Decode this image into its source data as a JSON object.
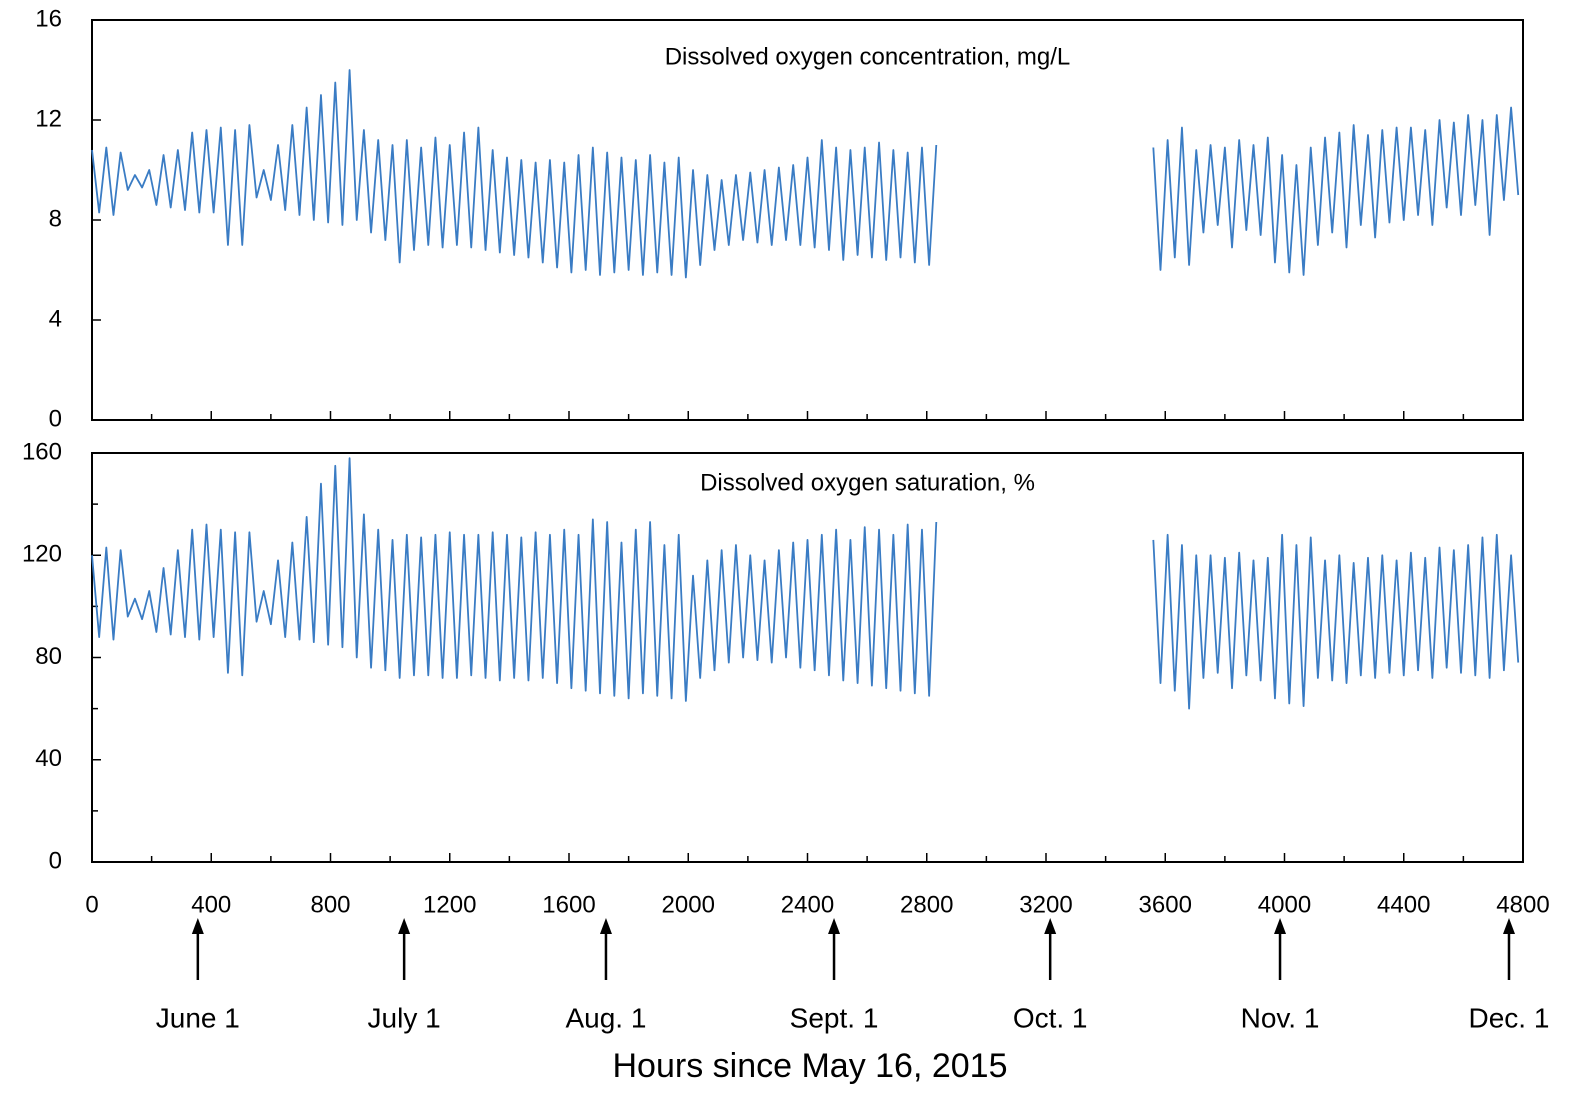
{
  "chart_data": [
    {
      "type": "line",
      "title": "Dissolved oxygen concentration, mg/L",
      "xlim": [
        0,
        4800
      ],
      "xticks": [
        0,
        400,
        800,
        1200,
        1600,
        2000,
        2400,
        2800,
        3200,
        3600,
        4000,
        4400,
        4800
      ],
      "xminorticks": [
        200,
        600,
        1000,
        1400,
        1800,
        2200,
        2600,
        3000,
        3400,
        3800,
        4200,
        4600
      ],
      "show_xtick_labels": false,
      "ylim": [
        0,
        16
      ],
      "yticks": [
        0,
        4,
        8,
        12,
        16
      ],
      "x": [
        0,
        24,
        48,
        72,
        96,
        120,
        144,
        168,
        192,
        216,
        240,
        264,
        288,
        312,
        336,
        360,
        384,
        408,
        432,
        456,
        480,
        504,
        528,
        552,
        576,
        600,
        624,
        648,
        672,
        696,
        720,
        744,
        768,
        792,
        816,
        840,
        864,
        888,
        912,
        936,
        960,
        984,
        1008,
        1032,
        1056,
        1080,
        1104,
        1128,
        1152,
        1176,
        1200,
        1224,
        1248,
        1272,
        1296,
        1320,
        1344,
        1368,
        1392,
        1416,
        1440,
        1464,
        1488,
        1512,
        1536,
        1560,
        1584,
        1608,
        1632,
        1656,
        1680,
        1704,
        1728,
        1752,
        1776,
        1800,
        1824,
        1848,
        1872,
        1896,
        1920,
        1944,
        1968,
        1992,
        2016,
        2040,
        2064,
        2088,
        2112,
        2136,
        2160,
        2184,
        2208,
        2232,
        2256,
        2280,
        2304,
        2328,
        2352,
        2376,
        2400,
        2424,
        2448,
        2472,
        2496,
        2520,
        2544,
        2568,
        2592,
        2616,
        2640,
        2664,
        2688,
        2712,
        2736,
        2760,
        2784,
        2808,
        2832,
        3200,
        3560,
        3584,
        3608,
        3632,
        3656,
        3680,
        3704,
        3728,
        3752,
        3776,
        3800,
        3824,
        3848,
        3872,
        3896,
        3920,
        3944,
        3968,
        3992,
        4016,
        4040,
        4064,
        4088,
        4112,
        4136,
        4160,
        4184,
        4208,
        4232,
        4256,
        4280,
        4304,
        4328,
        4352,
        4376,
        4400,
        4424,
        4448,
        4472,
        4496,
        4520,
        4544,
        4568,
        4592,
        4616,
        4640,
        4664,
        4688,
        4712,
        4736,
        4760,
        4784
      ],
      "series": [
        {
          "color": "#3a7cc4",
          "values": [
            10.8,
            8.3,
            10.9,
            8.2,
            10.7,
            9.2,
            9.8,
            9.3,
            10.0,
            8.6,
            10.6,
            8.5,
            10.8,
            8.4,
            11.5,
            8.3,
            11.6,
            8.3,
            11.7,
            7.0,
            11.6,
            7.0,
            11.8,
            8.9,
            10.0,
            8.8,
            11.0,
            8.4,
            11.8,
            8.2,
            12.5,
            8.0,
            13.0,
            7.9,
            13.5,
            7.8,
            14.0,
            8.0,
            11.6,
            7.5,
            11.2,
            7.2,
            11.0,
            6.3,
            11.2,
            6.8,
            10.9,
            7.0,
            11.3,
            6.9,
            11.0,
            7.0,
            11.5,
            6.9,
            11.7,
            6.8,
            10.8,
            6.7,
            10.5,
            6.6,
            10.4,
            6.5,
            10.3,
            6.3,
            10.4,
            6.1,
            10.3,
            5.9,
            10.6,
            6.0,
            10.9,
            5.8,
            10.7,
            5.9,
            10.5,
            6.0,
            10.4,
            5.8,
            10.6,
            5.9,
            10.3,
            5.8,
            10.5,
            5.7,
            10.0,
            6.2,
            9.8,
            6.8,
            9.6,
            7.0,
            9.8,
            7.2,
            9.9,
            7.1,
            10.0,
            7.0,
            10.1,
            7.2,
            10.2,
            7.0,
            10.5,
            6.9,
            11.2,
            6.8,
            10.9,
            6.4,
            10.8,
            6.6,
            10.9,
            6.5,
            11.1,
            6.4,
            10.8,
            6.5,
            10.7,
            6.3,
            10.9,
            6.2,
            11.0,
            null,
            10.9,
            6.0,
            11.2,
            6.5,
            11.7,
            6.2,
            10.8,
            7.5,
            11.0,
            7.8,
            10.9,
            6.9,
            11.2,
            7.6,
            11.0,
            7.4,
            11.3,
            6.3,
            10.6,
            5.9,
            10.2,
            5.8,
            10.9,
            7.0,
            11.3,
            7.5,
            11.5,
            6.9,
            11.8,
            7.8,
            11.4,
            7.3,
            11.6,
            7.9,
            11.7,
            8.0,
            11.7,
            8.2,
            11.6,
            7.8,
            12.0,
            8.5,
            11.9,
            8.2,
            12.2,
            8.6,
            12.0,
            7.4,
            12.2,
            8.8,
            12.5,
            9.0
          ]
        }
      ]
    },
    {
      "type": "line",
      "title": "Dissolved oxygen saturation, %",
      "xlabel": "Hours since May 16, 2015",
      "xlim": [
        0,
        4800
      ],
      "xticks": [
        0,
        400,
        800,
        1200,
        1600,
        2000,
        2400,
        2800,
        3200,
        3600,
        4000,
        4400,
        4800
      ],
      "xminorticks": [
        200,
        600,
        1000,
        1400,
        1800,
        2200,
        2600,
        3000,
        3400,
        3800,
        4200,
        4600
      ],
      "show_xtick_labels": true,
      "ylim": [
        0,
        160
      ],
      "yticks": [
        0,
        40,
        80,
        120,
        160
      ],
      "yminorticks": [
        20,
        60,
        100,
        140
      ],
      "annotations": [
        {
          "label": "June 1",
          "x": 355
        },
        {
          "label": "July 1",
          "x": 1047
        },
        {
          "label": "Aug. 1",
          "x": 1724
        },
        {
          "label": "Sept. 1",
          "x": 2489
        },
        {
          "label": "Oct. 1",
          "x": 3214
        },
        {
          "label": "Nov. 1",
          "x": 3985
        },
        {
          "label": "Dec. 1",
          "x": 4753
        }
      ],
      "x": [
        0,
        24,
        48,
        72,
        96,
        120,
        144,
        168,
        192,
        216,
        240,
        264,
        288,
        312,
        336,
        360,
        384,
        408,
        432,
        456,
        480,
        504,
        528,
        552,
        576,
        600,
        624,
        648,
        672,
        696,
        720,
        744,
        768,
        792,
        816,
        840,
        864,
        888,
        912,
        936,
        960,
        984,
        1008,
        1032,
        1056,
        1080,
        1104,
        1128,
        1152,
        1176,
        1200,
        1224,
        1248,
        1272,
        1296,
        1320,
        1344,
        1368,
        1392,
        1416,
        1440,
        1464,
        1488,
        1512,
        1536,
        1560,
        1584,
        1608,
        1632,
        1656,
        1680,
        1704,
        1728,
        1752,
        1776,
        1800,
        1824,
        1848,
        1872,
        1896,
        1920,
        1944,
        1968,
        1992,
        2016,
        2040,
        2064,
        2088,
        2112,
        2136,
        2160,
        2184,
        2208,
        2232,
        2256,
        2280,
        2304,
        2328,
        2352,
        2376,
        2400,
        2424,
        2448,
        2472,
        2496,
        2520,
        2544,
        2568,
        2592,
        2616,
        2640,
        2664,
        2688,
        2712,
        2736,
        2760,
        2784,
        2808,
        2832,
        3200,
        3560,
        3584,
        3608,
        3632,
        3656,
        3680,
        3704,
        3728,
        3752,
        3776,
        3800,
        3824,
        3848,
        3872,
        3896,
        3920,
        3944,
        3968,
        3992,
        4016,
        4040,
        4064,
        4088,
        4112,
        4136,
        4160,
        4184,
        4208,
        4232,
        4256,
        4280,
        4304,
        4328,
        4352,
        4376,
        4400,
        4424,
        4448,
        4472,
        4496,
        4520,
        4544,
        4568,
        4592,
        4616,
        4640,
        4664,
        4688,
        4712,
        4736,
        4760,
        4784
      ],
      "series": [
        {
          "color": "#3a7cc4",
          "values": [
            120,
            88,
            123,
            87,
            122,
            96,
            103,
            95,
            106,
            90,
            115,
            89,
            122,
            88,
            130,
            87,
            132,
            88,
            130,
            74,
            129,
            73,
            129,
            94,
            106,
            93,
            118,
            88,
            125,
            87,
            135,
            86,
            148,
            85,
            155,
            84,
            158,
            80,
            136,
            76,
            130,
            75,
            126,
            72,
            128,
            73,
            127,
            73,
            128,
            72,
            129,
            72,
            128,
            73,
            128,
            72,
            129,
            71,
            128,
            72,
            127,
            71,
            129,
            72,
            128,
            70,
            130,
            68,
            128,
            67,
            134,
            66,
            133,
            65,
            125,
            64,
            130,
            66,
            133,
            65,
            124,
            64,
            128,
            63,
            112,
            72,
            118,
            75,
            122,
            78,
            124,
            80,
            120,
            79,
            118,
            78,
            122,
            80,
            125,
            76,
            126,
            75,
            128,
            73,
            130,
            71,
            126,
            70,
            131,
            69,
            130,
            68,
            128,
            67,
            132,
            66,
            130,
            65,
            133,
            null,
            126,
            70,
            128,
            67,
            124,
            60,
            120,
            72,
            120,
            74,
            119,
            68,
            121,
            73,
            118,
            71,
            119,
            64,
            128,
            62,
            124,
            61,
            127,
            72,
            118,
            71,
            120,
            70,
            117,
            73,
            119,
            72,
            120,
            74,
            118,
            73,
            121,
            75,
            119,
            72,
            123,
            76,
            122,
            74,
            124,
            73,
            127,
            72,
            128,
            75,
            120,
            78
          ]
        }
      ]
    }
  ]
}
